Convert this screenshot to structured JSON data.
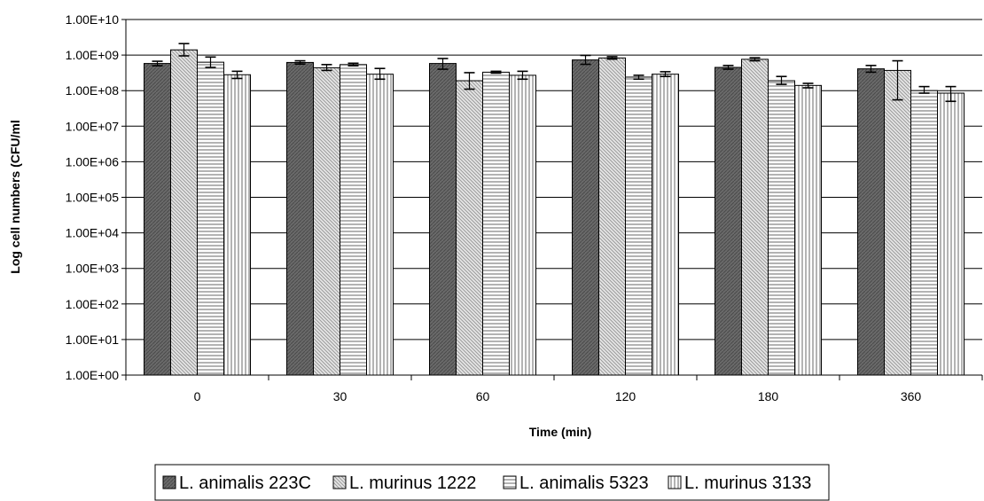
{
  "chart_data": {
    "type": "bar",
    "title": "",
    "xlabel": "Time (min)",
    "ylabel": "Log cell numbers (CFU/ml",
    "yscale": "log",
    "ylim": [
      1,
      10000000000
    ],
    "yticks": [
      "1.00E+00",
      "1.00E+01",
      "1.00E+02",
      "1.00E+03",
      "1.00E+04",
      "1.00E+05",
      "1.00E+06",
      "1.00E+07",
      "1.00E+08",
      "1.00E+09",
      "1.00E+10"
    ],
    "categories": [
      "0",
      "30",
      "60",
      "120",
      "180",
      "360"
    ],
    "grid": "horizontal",
    "legend_position": "bottom",
    "series": [
      {
        "name": "L. animalis 223C",
        "pattern": "dark",
        "values": [
          580000000,
          620000000,
          580000000,
          730000000,
          450000000,
          410000000
        ],
        "err_low": [
          500000000,
          560000000,
          400000000,
          550000000,
          400000000,
          330000000
        ],
        "err_high": [
          670000000,
          690000000,
          800000000,
          980000000,
          510000000,
          510000000
        ]
      },
      {
        "name": "L. murinus 1222",
        "pattern": "diagonal",
        "values": [
          1400000000,
          440000000,
          190000000,
          830000000,
          760000000,
          370000000
        ],
        "err_low": [
          950000000,
          370000000,
          110000000,
          770000000,
          690000000,
          55000000
        ],
        "err_high": [
          2100000000,
          540000000,
          320000000,
          900000000,
          840000000,
          690000000
        ]
      },
      {
        "name": "L. animalis 5323",
        "pattern": "horizontal",
        "values": [
          630000000,
          540000000,
          330000000,
          240000000,
          190000000,
          100000000
        ],
        "err_low": [
          450000000,
          500000000,
          310000000,
          210000000,
          150000000,
          85000000
        ],
        "err_high": [
          880000000,
          590000000,
          350000000,
          270000000,
          250000000,
          130000000
        ]
      },
      {
        "name": "L. murinus 3133",
        "pattern": "vertical",
        "values": [
          280000000,
          290000000,
          270000000,
          290000000,
          140000000,
          85000000
        ],
        "err_low": [
          220000000,
          210000000,
          210000000,
          250000000,
          120000000,
          50000000
        ],
        "err_high": [
          350000000,
          420000000,
          350000000,
          340000000,
          160000000,
          130000000
        ]
      }
    ]
  }
}
